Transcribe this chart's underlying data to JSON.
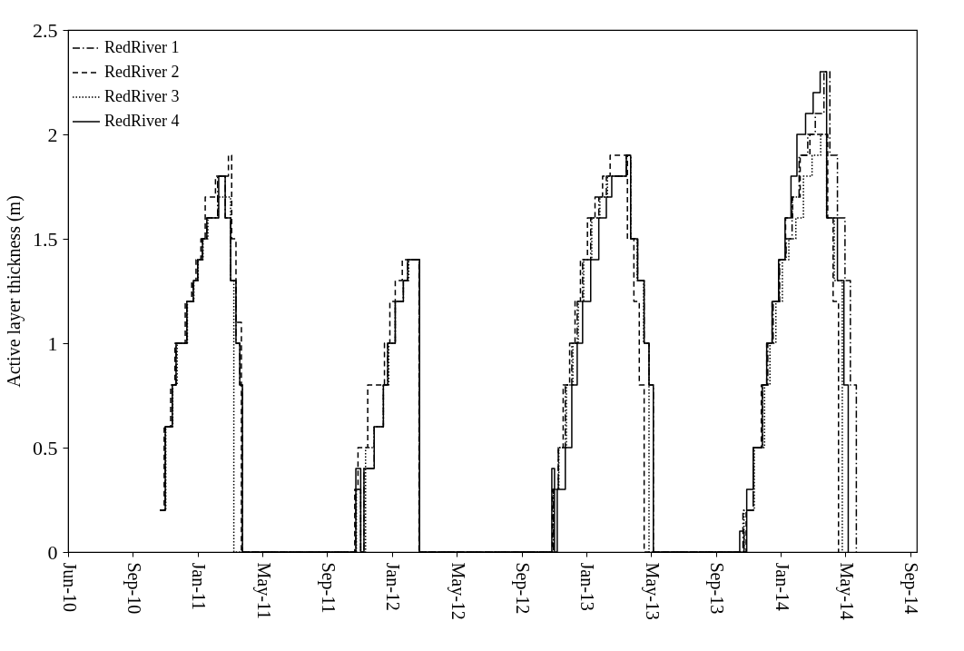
{
  "chart_data": {
    "type": "step",
    "ylabel": "Active layer thickness (m)",
    "xlim": [
      "2010-06-01",
      "2014-09-20"
    ],
    "xticks": [
      {
        "value": "2010-06-01",
        "label": "Jun-10"
      },
      {
        "value": "2010-09-29",
        "label": "Sep-10"
      },
      {
        "value": "2011-01-27",
        "label": "Jan-11"
      },
      {
        "value": "2011-05-27",
        "label": "May-11"
      },
      {
        "value": "2011-09-24",
        "label": "Sep-11"
      },
      {
        "value": "2012-01-22",
        "label": "Jan-12"
      },
      {
        "value": "2012-05-21",
        "label": "May-12"
      },
      {
        "value": "2012-09-18",
        "label": "Sep-12"
      },
      {
        "value": "2013-01-16",
        "label": "Jan-13"
      },
      {
        "value": "2013-05-16",
        "label": "May-13"
      },
      {
        "value": "2013-09-13",
        "label": "Sep-13"
      },
      {
        "value": "2014-01-11",
        "label": "Jan-14"
      },
      {
        "value": "2014-05-11",
        "label": "May-14"
      },
      {
        "value": "2014-09-08",
        "label": "Sep-14"
      }
    ],
    "ylim": [
      0,
      2.5
    ],
    "yticks": [
      0,
      0.5,
      1,
      1.5,
      2,
      2.5
    ],
    "grid": false,
    "legend": "top left",
    "marker": "none",
    "series": [
      {
        "name": "RedRiver 1",
        "color": "#000000",
        "line_style": "dashdot",
        "x": [
          "2010-11-18",
          "2010-11-28",
          "2010-12-11",
          "2010-12-18",
          "2011-01-07",
          "2011-01-19",
          "2011-01-27",
          "2011-02-05",
          "2011-02-13",
          "2011-03-05",
          "2011-03-19",
          "2011-03-29",
          "2011-04-08",
          "2011-04-15",
          "2011-04-20",
          "2011-11-16",
          "2011-11-25",
          "2011-12-01",
          "2011-12-20",
          "2012-01-06",
          "2012-01-14",
          "2012-01-28",
          "2012-02-12",
          "2012-02-20",
          "2012-03-13",
          "2012-11-16",
          "2012-11-25",
          "2012-12-08",
          "2012-12-20",
          "2012-12-30",
          "2013-01-09",
          "2013-01-24",
          "2013-02-08",
          "2013-02-22",
          "2013-03-04",
          "2013-03-31",
          "2013-04-08",
          "2013-04-21",
          "2013-05-03",
          "2013-05-12",
          "2013-05-20",
          "2013-11-02",
          "2013-11-21",
          "2013-12-08",
          "2013-12-18",
          "2013-12-28",
          "2014-01-09",
          "2014-01-21",
          "2014-02-01",
          "2014-02-14",
          "2014-03-02",
          "2014-03-16",
          "2014-04-01",
          "2014-04-12",
          "2014-04-26",
          "2014-05-10",
          "2014-05-20",
          "2014-05-31"
        ],
        "values": [
          0.2,
          0.6,
          0.8,
          1.0,
          1.2,
          1.3,
          1.4,
          1.5,
          1.6,
          1.8,
          1.6,
          1.3,
          1.0,
          0.8,
          0,
          0.3,
          0,
          0.4,
          0.6,
          0.8,
          1.0,
          1.2,
          1.3,
          1.4,
          0,
          0.3,
          0.5,
          0.8,
          1.0,
          1.2,
          1.4,
          1.6,
          1.7,
          1.8,
          1.8,
          1.9,
          1.5,
          1.3,
          1.0,
          0.8,
          0,
          0.2,
          0.5,
          0.8,
          1.0,
          1.2,
          1.4,
          1.5,
          1.7,
          1.9,
          2.0,
          2.1,
          2.3,
          1.9,
          1.6,
          1.3,
          0.8,
          0
        ]
      },
      {
        "name": "RedRiver 2",
        "color": "#000000",
        "line_style": "dashed",
        "x": [
          "2010-11-18",
          "2010-11-26",
          "2010-12-08",
          "2010-12-16",
          "2011-01-04",
          "2011-01-16",
          "2011-01-24",
          "2011-02-02",
          "2011-02-10",
          "2011-03-01",
          "2011-03-25",
          "2011-03-31",
          "2011-04-08",
          "2011-04-18",
          "2011-11-14",
          "2011-11-20",
          "2011-12-08",
          "2011-12-28",
          "2012-01-08",
          "2012-01-18",
          "2012-01-28",
          "2012-02-10",
          "2012-02-20",
          "2012-03-12",
          "2012-11-14",
          "2012-11-25",
          "2012-12-04",
          "2012-12-16",
          "2012-12-26",
          "2013-01-05",
          "2013-01-18",
          "2013-02-01",
          "2013-02-15",
          "2013-03-01",
          "2013-03-20",
          "2013-04-02",
          "2013-04-14",
          "2013-04-24",
          "2013-05-03",
          "2013-11-08",
          "2013-11-21",
          "2013-12-06",
          "2013-12-16",
          "2013-12-26",
          "2014-01-08",
          "2014-01-20",
          "2014-02-02",
          "2014-02-16",
          "2014-03-06",
          "2014-03-24",
          "2014-04-08",
          "2014-04-18",
          "2014-04-28"
        ],
        "values": [
          0.2,
          0.6,
          0.8,
          1.0,
          1.2,
          1.3,
          1.4,
          1.5,
          1.7,
          1.8,
          1.9,
          1.5,
          1.1,
          0,
          0.3,
          0.5,
          0.8,
          0.8,
          1.0,
          1.2,
          1.3,
          1.4,
          1.4,
          0,
          0.3,
          0.5,
          0.8,
          1.0,
          1.2,
          1.4,
          1.6,
          1.7,
          1.8,
          1.9,
          1.9,
          1.5,
          1.2,
          0.8,
          0,
          0.2,
          0.5,
          0.8,
          1.0,
          1.2,
          1.4,
          1.6,
          1.7,
          1.9,
          2.0,
          2.0,
          1.6,
          1.2,
          0
        ]
      },
      {
        "name": "RedRiver 3",
        "color": "#000000",
        "line_style": "dotted",
        "x": [
          "2010-11-19",
          "2010-11-29",
          "2010-12-12",
          "2010-12-20",
          "2011-01-08",
          "2011-01-20",
          "2011-01-28",
          "2011-02-06",
          "2011-02-15",
          "2011-03-06",
          "2011-03-22",
          "2011-03-29",
          "2011-04-04",
          "2011-11-17",
          "2011-11-25",
          "2011-12-04",
          "2011-12-20",
          "2012-01-06",
          "2012-01-16",
          "2012-01-28",
          "2012-02-12",
          "2012-02-22",
          "2012-03-13",
          "2012-11-16",
          "2012-11-26",
          "2012-12-10",
          "2012-12-22",
          "2013-01-01",
          "2013-01-11",
          "2013-01-26",
          "2013-02-10",
          "2013-02-24",
          "2013-03-06",
          "2013-03-31",
          "2013-04-08",
          "2013-04-20",
          "2013-05-02",
          "2013-05-12",
          "2013-11-04",
          "2013-11-23",
          "2013-12-12",
          "2013-12-22",
          "2014-01-02",
          "2014-01-14",
          "2014-01-26",
          "2014-02-08",
          "2014-02-22",
          "2014-03-10",
          "2014-03-26",
          "2014-04-06",
          "2014-04-20",
          "2014-05-05"
        ],
        "values": [
          0.2,
          0.6,
          0.8,
          1.0,
          1.2,
          1.3,
          1.4,
          1.5,
          1.6,
          1.7,
          1.7,
          1.3,
          0,
          0.3,
          0,
          0.5,
          0.6,
          0.8,
          1.0,
          1.2,
          1.3,
          1.4,
          0,
          0.3,
          0.5,
          0.8,
          1.0,
          1.2,
          1.4,
          1.6,
          1.7,
          1.8,
          1.8,
          1.9,
          1.5,
          1.3,
          1.0,
          0,
          0.2,
          0.5,
          0.8,
          1.0,
          1.2,
          1.4,
          1.5,
          1.6,
          1.8,
          1.9,
          2.0,
          1.6,
          1.3,
          0
        ]
      },
      {
        "name": "RedRiver 4",
        "color": "#000000",
        "line_style": "solid",
        "x": [
          "2010-11-18",
          "2010-11-28",
          "2010-12-11",
          "2010-12-18",
          "2011-01-07",
          "2011-01-19",
          "2011-01-27",
          "2011-02-05",
          "2011-02-13",
          "2011-03-07",
          "2011-03-19",
          "2011-03-29",
          "2011-04-08",
          "2011-04-15",
          "2011-04-20",
          "2011-11-16",
          "2011-11-25",
          "2011-12-01",
          "2011-12-20",
          "2012-01-06",
          "2012-01-14",
          "2012-01-28",
          "2012-02-12",
          "2012-02-20",
          "2012-03-13",
          "2012-11-13",
          "2012-11-18",
          "2012-11-23",
          "2012-12-08",
          "2012-12-20",
          "2012-12-30",
          "2013-01-09",
          "2013-01-24",
          "2013-02-08",
          "2013-02-22",
          "2013-03-04",
          "2013-03-31",
          "2013-04-08",
          "2013-04-21",
          "2013-05-03",
          "2013-05-12",
          "2013-05-20",
          "2013-10-27",
          "2013-11-04",
          "2013-11-09",
          "2013-11-21",
          "2013-12-08",
          "2013-12-16",
          "2013-12-26",
          "2014-01-07",
          "2014-01-19",
          "2014-01-30",
          "2014-02-10",
          "2014-02-26",
          "2014-03-12",
          "2014-03-25",
          "2014-04-06",
          "2014-04-26",
          "2014-05-08",
          "2014-05-16"
        ],
        "values": [
          0.2,
          0.6,
          0.8,
          1.0,
          1.2,
          1.3,
          1.4,
          1.5,
          1.6,
          1.8,
          1.6,
          1.3,
          1.0,
          0.8,
          0,
          0.4,
          0,
          0.4,
          0.6,
          0.8,
          1.0,
          1.2,
          1.3,
          1.4,
          0,
          0.4,
          0,
          0.3,
          0.5,
          0.8,
          1.0,
          1.2,
          1.4,
          1.6,
          1.7,
          1.8,
          1.9,
          1.5,
          1.3,
          1.0,
          0.8,
          0,
          0.1,
          0,
          0.3,
          0.5,
          0.8,
          1.0,
          1.2,
          1.4,
          1.6,
          1.8,
          2.0,
          2.1,
          2.2,
          2.3,
          1.6,
          1.3,
          0.8,
          0
        ]
      }
    ]
  }
}
